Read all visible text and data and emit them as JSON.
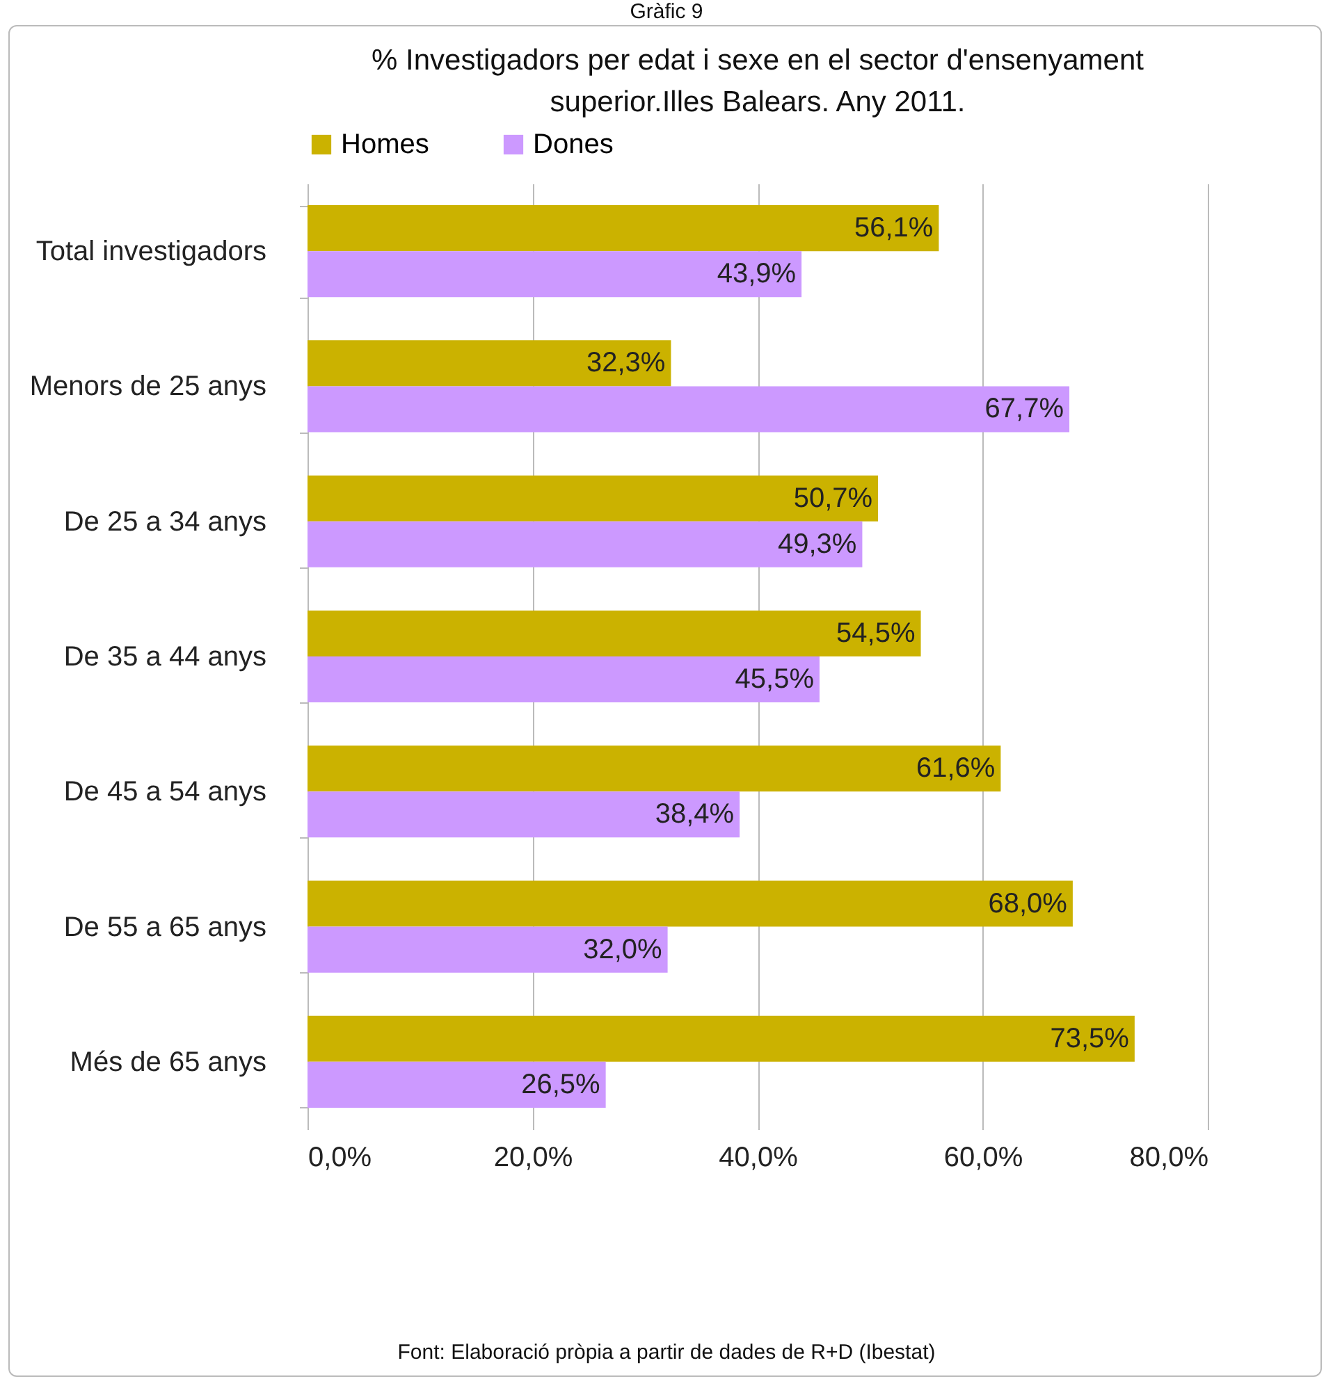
{
  "chart_data": {
    "type": "bar",
    "orientation": "horizontal",
    "title": "% Investigadors per edat  i sexe en el sector d'ensenyament\nsuperior.Illes Balears. Any 2011.",
    "annotations": [
      "Gràfic 9",
      "Font: Elaboració pròpia a partir de dades de R+D (Ibestat)"
    ],
    "categories": [
      "Total investigadors",
      "Menors de 25 anys",
      "De 25 a 34 anys",
      "De 35 a 44 anys",
      "De 45 a 54 anys",
      "De 55 a 65 anys",
      "Més de 65 anys"
    ],
    "series": [
      {
        "name": "Homes",
        "color": "#cbb200",
        "values": [
          56.1,
          32.3,
          50.7,
          54.5,
          61.6,
          68.0,
          73.5
        ],
        "value_labels": [
          "56,1%",
          "32,3%",
          "50,7%",
          "54,5%",
          "61,6%",
          "68,0%",
          "73,5%"
        ]
      },
      {
        "name": "Dones",
        "color": "#cc99ff",
        "values": [
          43.9,
          67.7,
          49.3,
          45.5,
          38.4,
          32.0,
          26.5
        ],
        "value_labels": [
          "43,9%",
          "67,7%",
          "49,3%",
          "45,5%",
          "38,4%",
          "32,0%",
          "26,5%"
        ]
      }
    ],
    "xlim": [
      0,
      80
    ],
    "xticks": [
      {
        "value": 0,
        "label": "0,0%"
      },
      {
        "value": 20,
        "label": "20,0%"
      },
      {
        "value": 40,
        "label": "40,0%"
      },
      {
        "value": 60,
        "label": "60,0%"
      },
      {
        "value": 80,
        "label": "80,0%"
      }
    ],
    "grid": "x",
    "legend": "top"
  }
}
